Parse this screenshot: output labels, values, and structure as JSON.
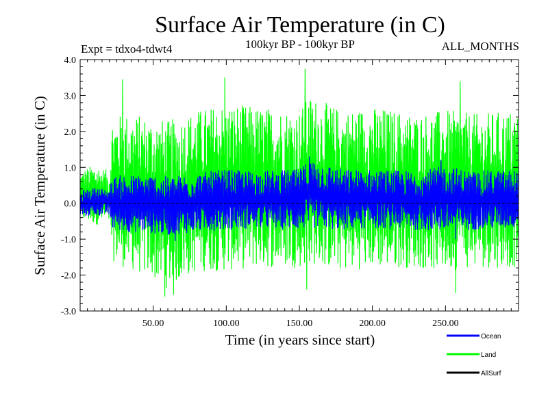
{
  "header": {
    "title": "Surface Air Temperature (in C)",
    "experiment": "Expt = tdxo4-tdwt4",
    "period": "100kyr BP - 100kyr BP",
    "months": "ALL_MONTHS"
  },
  "colors": {
    "ocean": "#0000ff",
    "land": "#00ff00",
    "allsurf": "#000000",
    "zero_line": "#000000"
  },
  "chart_data": {
    "type": "line",
    "title": "Surface Air Temperature (in C)",
    "xlabel": "Time (in years since start)",
    "ylabel": "Surface Air Temperature (in C)",
    "xlim": [
      0,
      300
    ],
    "ylim": [
      -3.0,
      4.0
    ],
    "x_ticks": [
      50,
      100,
      150,
      200,
      250
    ],
    "x_tick_labels": [
      "50.00",
      "100.00",
      "150.00",
      "200.00",
      "250.00"
    ],
    "y_ticks": [
      -3,
      -2,
      -1,
      0,
      1,
      2,
      3,
      4
    ],
    "y_tick_labels": [
      "-3.0",
      "-2.0",
      "-1.0",
      "0.0",
      "1.0",
      "2.0",
      "3.0",
      "4.0"
    ],
    "zero_reference": 0.0,
    "legend_position": "bottom-right",
    "series": [
      {
        "name": "Land",
        "description_envelope": {
          "x": [
            0,
            10,
            20,
            22,
            30,
            50,
            60,
            80,
            100,
            120,
            150,
            157,
            180,
            200,
            230,
            250,
            270,
            300
          ],
          "upper": [
            0.9,
            1.1,
            0.9,
            2.4,
            2.5,
            2.4,
            2.3,
            2.6,
            2.8,
            2.7,
            2.6,
            3.0,
            2.6,
            2.7,
            2.5,
            2.6,
            2.5,
            2.6
          ],
          "lower": [
            -0.5,
            -0.6,
            -0.6,
            -1.6,
            -1.8,
            -2.1,
            -2.4,
            -1.9,
            -1.9,
            -1.8,
            -1.8,
            -1.7,
            -1.9,
            -1.8,
            -1.8,
            -1.9,
            -1.8,
            -1.8
          ]
        },
        "peaks": [
          {
            "x": 29,
            "y": 3.45
          },
          {
            "x": 99,
            "y": 3.5
          },
          {
            "x": 154,
            "y": 3.75
          },
          {
            "x": 260,
            "y": 3.4
          }
        ],
        "troughs": [
          {
            "x": 58,
            "y": -2.6
          },
          {
            "x": 64,
            "y": -2.55
          },
          {
            "x": 155,
            "y": -2.4
          },
          {
            "x": 257,
            "y": -2.5
          }
        ]
      },
      {
        "name": "Ocean",
        "description_envelope": {
          "x": [
            0,
            10,
            20,
            22,
            30,
            50,
            60,
            80,
            100,
            120,
            150,
            157,
            180,
            200,
            230,
            250,
            270,
            300
          ],
          "upper": [
            0.35,
            0.45,
            0.4,
            0.75,
            0.8,
            0.8,
            0.75,
            0.85,
            0.95,
            0.9,
            0.95,
            1.25,
            0.95,
            0.95,
            0.9,
            1.05,
            0.9,
            0.95
          ],
          "lower": [
            -0.4,
            -0.35,
            -0.35,
            -0.75,
            -0.8,
            -0.85,
            -0.9,
            -0.8,
            -0.75,
            -0.7,
            -0.75,
            -0.7,
            -0.75,
            -0.7,
            -0.75,
            -0.8,
            -0.75,
            -0.7
          ]
        },
        "peaks": [
          {
            "x": 157,
            "y": 1.3
          },
          {
            "x": 247,
            "y": 1.2
          }
        ],
        "troughs": [
          {
            "x": 65,
            "y": -1.05
          },
          {
            "x": 257,
            "y": -1.0
          }
        ]
      },
      {
        "name": "AllSurf",
        "values": "not visible (overdrawn)"
      }
    ]
  },
  "legend": {
    "items": [
      {
        "label": "Ocean"
      },
      {
        "label": "Land"
      },
      {
        "label": "AllSurf"
      }
    ]
  }
}
